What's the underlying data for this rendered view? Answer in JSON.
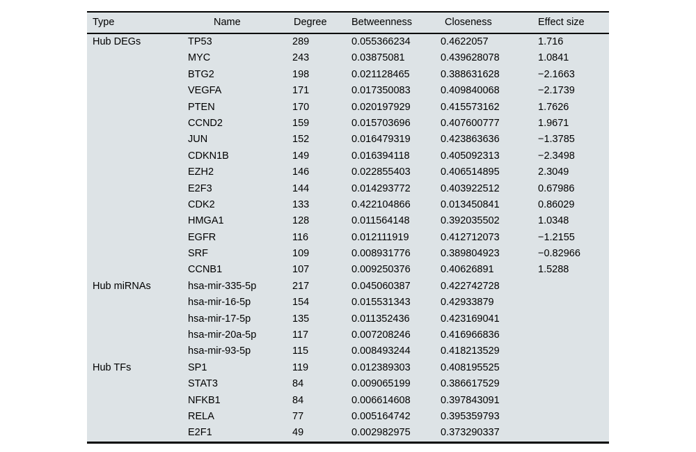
{
  "colors": {
    "table_bg": "#dde3e6",
    "rule_color": "#000000",
    "page_bg": "#ffffff",
    "text_color": "#000000"
  },
  "table": {
    "columns": [
      {
        "key": "type",
        "label": "Type"
      },
      {
        "key": "name",
        "label": "Name"
      },
      {
        "key": "degree",
        "label": "Degree"
      },
      {
        "key": "betweenness",
        "label": "Betweenness"
      },
      {
        "key": "closeness",
        "label": "Closeness"
      },
      {
        "key": "effect_size",
        "label": "Effect size"
      }
    ],
    "groups": [
      {
        "type": "Hub DEGs",
        "rows": [
          {
            "name": "TP53",
            "degree": "289",
            "betweenness": "0.055366234",
            "closeness": "0.4622057",
            "effect_size": "1.716"
          },
          {
            "name": "MYC",
            "degree": "243",
            "betweenness": "0.03875081",
            "closeness": "0.439628078",
            "effect_size": "1.0841"
          },
          {
            "name": "BTG2",
            "degree": "198",
            "betweenness": "0.021128465",
            "closeness": "0.388631628",
            "effect_size": "−2.1663"
          },
          {
            "name": "VEGFA",
            "degree": "171",
            "betweenness": "0.017350083",
            "closeness": "0.409840068",
            "effect_size": "−2.1739"
          },
          {
            "name": "PTEN",
            "degree": "170",
            "betweenness": "0.020197929",
            "closeness": "0.415573162",
            "effect_size": "1.7626"
          },
          {
            "name": "CCND2",
            "degree": "159",
            "betweenness": "0.015703696",
            "closeness": "0.407600777",
            "effect_size": "1.9671"
          },
          {
            "name": "JUN",
            "degree": "152",
            "betweenness": "0.016479319",
            "closeness": "0.423863636",
            "effect_size": "−1.3785"
          },
          {
            "name": "CDKN1B",
            "degree": "149",
            "betweenness": "0.016394118",
            "closeness": "0.405092313",
            "effect_size": "−2.3498"
          },
          {
            "name": "EZH2",
            "degree": "146",
            "betweenness": "0.022855403",
            "closeness": "0.406514895",
            "effect_size": "2.3049"
          },
          {
            "name": "E2F3",
            "degree": "144",
            "betweenness": "0.014293772",
            "closeness": "0.403922512",
            "effect_size": "0.67986"
          },
          {
            "name": "CDK2",
            "degree": "133",
            "betweenness": "0.422104866",
            "closeness": "0.013450841",
            "effect_size": "0.86029"
          },
          {
            "name": "HMGA1",
            "degree": "128",
            "betweenness": "0.011564148",
            "closeness": "0.392035502",
            "effect_size": "1.0348"
          },
          {
            "name": "EGFR",
            "degree": "116",
            "betweenness": "0.012111919",
            "closeness": "0.412712073",
            "effect_size": "−1.2155"
          },
          {
            "name": "SRF",
            "degree": "109",
            "betweenness": "0.008931776",
            "closeness": "0.389804923",
            "effect_size": "−0.82966"
          },
          {
            "name": "CCNB1",
            "degree": "107",
            "betweenness": "0.009250376",
            "closeness": "0.40626891",
            "effect_size": "1.5288"
          }
        ]
      },
      {
        "type": "Hub miRNAs",
        "rows": [
          {
            "name": "hsa-mir-335-5p",
            "degree": "217",
            "betweenness": "0.045060387",
            "closeness": "0.422742728",
            "effect_size": ""
          },
          {
            "name": "hsa-mir-16-5p",
            "degree": "154",
            "betweenness": "0.015531343",
            "closeness": "0.42933879",
            "effect_size": ""
          },
          {
            "name": "hsa-mir-17-5p",
            "degree": "135",
            "betweenness": "0.011352436",
            "closeness": "0.423169041",
            "effect_size": ""
          },
          {
            "name": "hsa-mir-20a-5p",
            "degree": "117",
            "betweenness": "0.007208246",
            "closeness": "0.416966836",
            "effect_size": ""
          },
          {
            "name": "hsa-mir-93-5p",
            "degree": "115",
            "betweenness": "0.008493244",
            "closeness": "0.418213529",
            "effect_size": ""
          }
        ]
      },
      {
        "type": "Hub TFs",
        "rows": [
          {
            "name": "SP1",
            "degree": "119",
            "betweenness": "0.012389303",
            "closeness": "0.408195525",
            "effect_size": ""
          },
          {
            "name": "STAT3",
            "degree": "84",
            "betweenness": "0.009065199",
            "closeness": "0.386617529",
            "effect_size": ""
          },
          {
            "name": "NFKB1",
            "degree": "84",
            "betweenness": "0.006614608",
            "closeness": "0.397843091",
            "effect_size": ""
          },
          {
            "name": "RELA",
            "degree": "77",
            "betweenness": "0.005164742",
            "closeness": "0.395359793",
            "effect_size": ""
          },
          {
            "name": "E2F1",
            "degree": "49",
            "betweenness": "0.002982975",
            "closeness": "0.373290337",
            "effect_size": ""
          }
        ]
      }
    ]
  }
}
